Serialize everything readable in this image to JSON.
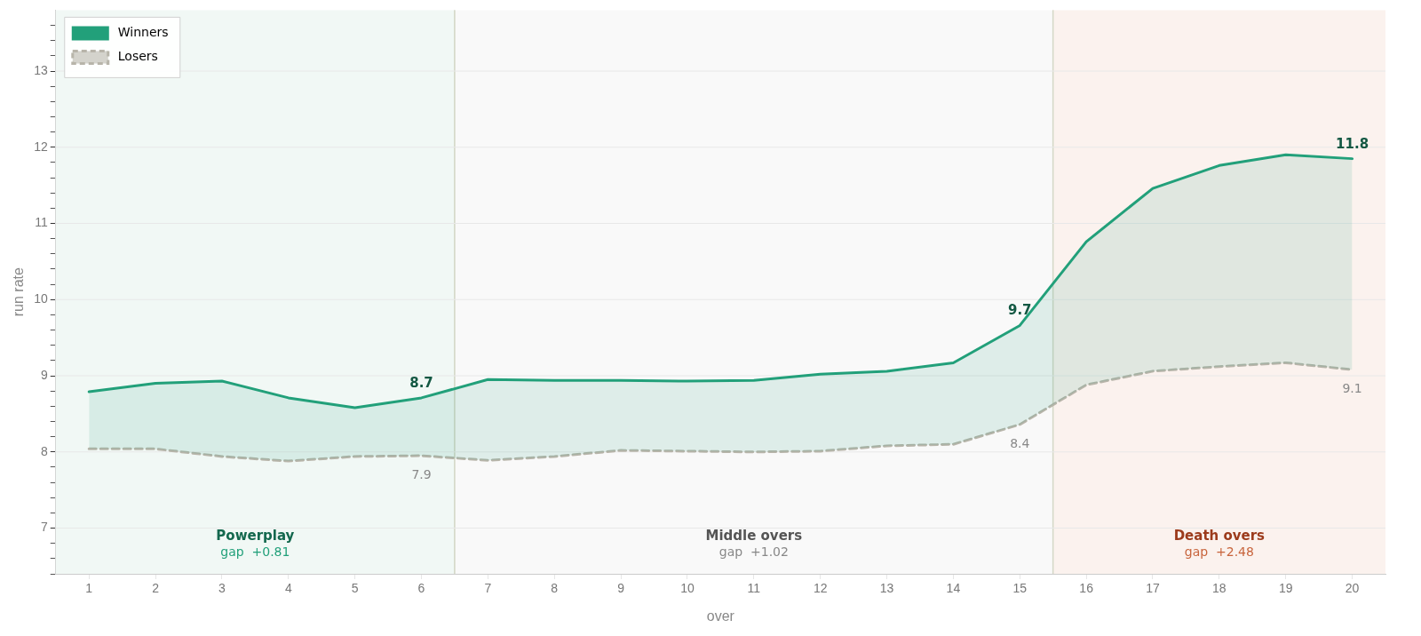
{
  "chart_data": {
    "type": "line",
    "xlabel": "over",
    "ylabel": "run rate",
    "x": [
      1,
      2,
      3,
      4,
      5,
      6,
      7,
      8,
      9,
      10,
      11,
      12,
      13,
      14,
      15,
      16,
      17,
      18,
      19,
      20
    ],
    "series": [
      {
        "name": "Winners",
        "type": "area",
        "color": "#22a07a",
        "line_style": "solid",
        "values": [
          8.79,
          8.9,
          8.93,
          8.71,
          8.58,
          8.71,
          8.95,
          8.94,
          8.94,
          8.93,
          8.94,
          9.02,
          9.06,
          9.17,
          9.66,
          10.76,
          11.46,
          11.76,
          11.9,
          11.85
        ],
        "value_labels": [
          null,
          null,
          null,
          null,
          null,
          "8.7",
          null,
          null,
          null,
          null,
          null,
          null,
          null,
          null,
          "9.7",
          null,
          null,
          null,
          null,
          "11.8"
        ]
      },
      {
        "name": "Losers",
        "color": "#b8b5aa",
        "line_style": "dashed",
        "values": [
          8.04,
          8.04,
          7.94,
          7.88,
          7.94,
          7.95,
          7.89,
          7.94,
          8.02,
          8.01,
          8.0,
          8.01,
          8.08,
          8.1,
          8.36,
          8.88,
          9.06,
          9.12,
          9.17,
          9.08
        ],
        "value_labels": [
          null,
          null,
          null,
          null,
          null,
          "7.9",
          null,
          null,
          null,
          null,
          null,
          null,
          null,
          null,
          "8.4",
          null,
          null,
          null,
          null,
          "9.1"
        ]
      }
    ],
    "xlim": [
      0.5,
      20.5
    ],
    "xticks": [
      1,
      2,
      3,
      4,
      5,
      6,
      7,
      8,
      9,
      10,
      11,
      12,
      13,
      14,
      15,
      16,
      17,
      18,
      19,
      20
    ],
    "ylim": [
      6.4,
      13.8
    ],
    "yticks": [
      {
        "value": 6.4,
        "label": null
      },
      {
        "value": 6.6,
        "label": null
      },
      {
        "value": 6.8,
        "label": null
      },
      7,
      {
        "value": 7.2,
        "label": null
      },
      {
        "value": 7.4,
        "label": null
      },
      {
        "value": 7.6,
        "label": null
      },
      {
        "value": 7.8,
        "label": null
      },
      8,
      {
        "value": 8.2,
        "label": null
      },
      {
        "value": 8.4,
        "label": null
      },
      {
        "value": 8.6,
        "label": null
      },
      {
        "value": 8.8,
        "label": null
      },
      9,
      {
        "value": 9.2,
        "label": null
      },
      {
        "value": 9.4,
        "label": null
      },
      {
        "value": 9.6,
        "label": null
      },
      {
        "value": 9.8,
        "label": null
      },
      10,
      {
        "value": 10.2,
        "label": null
      },
      {
        "value": 10.4,
        "label": null
      },
      {
        "value": 10.6,
        "label": null
      },
      {
        "value": 10.8,
        "label": null
      },
      11,
      {
        "value": 11.2,
        "label": null
      },
      {
        "value": 11.4,
        "label": null
      },
      {
        "value": 11.6,
        "label": null
      },
      {
        "value": 11.8,
        "label": null
      },
      12,
      {
        "value": 12.2,
        "label": null
      },
      {
        "value": 12.4,
        "label": null
      },
      {
        "value": 12.6,
        "label": null
      },
      {
        "value": 12.8,
        "label": null
      },
      13,
      {
        "value": 13.2,
        "label": null
      },
      {
        "value": 13.4,
        "label": null
      },
      {
        "value": 13.6,
        "label": null
      }
    ],
    "bands": [
      {
        "axis": "x",
        "from": 0.5,
        "to": 6.5,
        "label": "Powerplay",
        "color": "#f1f8f5"
      },
      {
        "axis": "x",
        "from": 6.5,
        "to": 15.5,
        "label": "Middle overs",
        "color": "#f9f9f9"
      },
      {
        "axis": "x",
        "from": 15.5,
        "to": 20.5,
        "label": "Death overs",
        "color": "#fbf2ee"
      }
    ],
    "annotations": [
      "gap  +0.81",
      "gap  +1.02",
      "gap  +2.48"
    ],
    "grid": "y",
    "legend": "top left",
    "marker": "none"
  }
}
